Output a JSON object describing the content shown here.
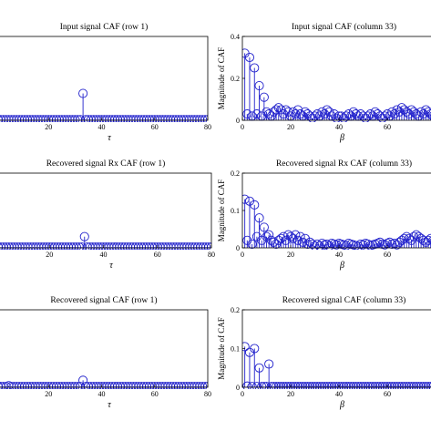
{
  "chart_data": [
    {
      "type": "stem",
      "title": "Input signal CAF (row 1)",
      "xlabel": "τ",
      "ylabel": "",
      "xlim": [
        0,
        80
      ],
      "ylim": [
        0,
        0.4
      ],
      "xticks": [
        20,
        40,
        60,
        80
      ],
      "xticklabels": [
        "20",
        "40",
        "60",
        "80"
      ],
      "yticks": [],
      "yticklabels": [],
      "x_start": 1,
      "x_end": 80,
      "baseline": 0.003,
      "peaks": [
        {
          "x": 33,
          "y": 0.128
        }
      ],
      "grid": false
    },
    {
      "type": "stem",
      "title": "Input signal CAF (column 33)",
      "xlabel": "β",
      "ylabel": "Magnitude of CAF",
      "xlim": [
        0,
        80
      ],
      "ylim": [
        0,
        0.4
      ],
      "xticks": [
        0,
        20,
        40,
        60
      ],
      "xticklabels": [
        "0",
        "20",
        "40",
        "60"
      ],
      "yticks": [
        0,
        0.2,
        0.4
      ],
      "yticklabels": [
        "0",
        "0.2",
        "0.4"
      ],
      "x": [
        1,
        2,
        3,
        4,
        5,
        6,
        7,
        8,
        9,
        10,
        11,
        12,
        13,
        14,
        15,
        16,
        17,
        18,
        19,
        20,
        21,
        22,
        23,
        24,
        25,
        26,
        27,
        28,
        29,
        30,
        31,
        32,
        33,
        34,
        35,
        36,
        37,
        38,
        39,
        40,
        41,
        42,
        43,
        44,
        45,
        46,
        47,
        48,
        49,
        50,
        51,
        52,
        53,
        54,
        55,
        56,
        57,
        58,
        59,
        60,
        61,
        62,
        63,
        64,
        65,
        66,
        67,
        68,
        69,
        70,
        71,
        72,
        73,
        74,
        75,
        76,
        77,
        78,
        79,
        80
      ],
      "y": [
        0.32,
        0.03,
        0.3,
        0.02,
        0.25,
        0.03,
        0.165,
        0.02,
        0.11,
        0.04,
        0.03,
        0.02,
        0.04,
        0.05,
        0.06,
        0.05,
        0.03,
        0.05,
        0.04,
        0.02,
        0.04,
        0.03,
        0.05,
        0.03,
        0.02,
        0.04,
        0.03,
        0.02,
        0.01,
        0.02,
        0.03,
        0.02,
        0.04,
        0.03,
        0.05,
        0.04,
        0.02,
        0.03,
        0.01,
        0.02,
        0.02,
        0.01,
        0.02,
        0.03,
        0.02,
        0.04,
        0.03,
        0.02,
        0.03,
        0.02,
        0.01,
        0.02,
        0.03,
        0.02,
        0.04,
        0.03,
        0.02,
        0.01,
        0.02,
        0.03,
        0.02,
        0.04,
        0.03,
        0.05,
        0.04,
        0.06,
        0.05,
        0.04,
        0.03,
        0.05,
        0.04,
        0.03,
        0.02,
        0.04,
        0.03,
        0.05,
        0.04,
        0.03,
        0.02,
        0.04
      ],
      "grid": false
    },
    {
      "type": "stem",
      "title": "Recovered signal Rx CAF (row 1)",
      "xlabel": "τ",
      "ylabel": "",
      "xlim": [
        0,
        80
      ],
      "ylim": [
        0,
        0.2
      ],
      "xticks": [
        20,
        40,
        60,
        80
      ],
      "xticklabels": [
        "20",
        "40",
        "60",
        "80"
      ],
      "yticks": [],
      "yticklabels": [],
      "x_start": 1,
      "x_end": 80,
      "baseline": 0.002,
      "peaks": [
        {
          "x": 33,
          "y": 0.03
        }
      ],
      "grid": false
    },
    {
      "type": "stem",
      "title": "Recovered signal Rx CAF (column 33)",
      "xlabel": "β",
      "ylabel": "Magnitude of CAF",
      "xlim": [
        0,
        80
      ],
      "ylim": [
        0,
        0.2
      ],
      "xticks": [
        0,
        20,
        40,
        60
      ],
      "xticklabels": [
        "0",
        "20",
        "40",
        "60"
      ],
      "yticks": [
        0,
        0.1,
        0.2
      ],
      "yticklabels": [
        "0",
        "0.1",
        "0.2"
      ],
      "x": [
        1,
        2,
        3,
        4,
        5,
        6,
        7,
        8,
        9,
        10,
        11,
        12,
        13,
        14,
        15,
        16,
        17,
        18,
        19,
        20,
        21,
        22,
        23,
        24,
        25,
        26,
        27,
        28,
        29,
        30,
        31,
        32,
        33,
        34,
        35,
        36,
        37,
        38,
        39,
        40,
        41,
        42,
        43,
        44,
        45,
        46,
        47,
        48,
        49,
        50,
        51,
        52,
        53,
        54,
        55,
        56,
        57,
        58,
        59,
        60,
        61,
        62,
        63,
        64,
        65,
        66,
        67,
        68,
        69,
        70,
        71,
        72,
        73,
        74,
        75,
        76,
        77,
        78,
        79,
        80
      ],
      "y": [
        0.13,
        0.02,
        0.125,
        0.01,
        0.115,
        0.03,
        0.08,
        0.02,
        0.055,
        0.03,
        0.035,
        0.02,
        0.015,
        0.01,
        0.02,
        0.025,
        0.03,
        0.02,
        0.035,
        0.03,
        0.025,
        0.035,
        0.02,
        0.03,
        0.015,
        0.025,
        0.01,
        0.015,
        0.01,
        0.005,
        0.01,
        0.005,
        0.012,
        0.008,
        0.01,
        0.005,
        0.012,
        0.01,
        0.008,
        0.012,
        0.01,
        0.008,
        0.006,
        0.012,
        0.01,
        0.008,
        0.006,
        0.004,
        0.01,
        0.008,
        0.012,
        0.01,
        0.006,
        0.008,
        0.01,
        0.012,
        0.015,
        0.01,
        0.008,
        0.012,
        0.015,
        0.01,
        0.012,
        0.008,
        0.015,
        0.02,
        0.025,
        0.03,
        0.025,
        0.02,
        0.03,
        0.035,
        0.03,
        0.025,
        0.02,
        0.015,
        0.02,
        0.025,
        0.02,
        0.015
      ],
      "grid": false
    },
    {
      "type": "stem",
      "title": "Recovered signal CAF (row 1)",
      "xlabel": "τ",
      "ylabel": "",
      "xlim": [
        0,
        80
      ],
      "ylim": [
        0,
        0.2
      ],
      "xticks": [
        20,
        40,
        60,
        80
      ],
      "xticklabels": [
        "20",
        "40",
        "60",
        "80"
      ],
      "yticks": [],
      "yticklabels": [],
      "x_start": 1,
      "x_end": 80,
      "baseline": 0.002,
      "peaks": [
        {
          "x": 33,
          "y": 0.018
        },
        {
          "x": 5,
          "y": 0.004
        }
      ],
      "grid": false
    },
    {
      "type": "stem",
      "title": "Recovered signal CAF (column 33)",
      "xlabel": "β",
      "ylabel": "Magnitude of CAF",
      "xlim": [
        0,
        80
      ],
      "ylim": [
        0,
        0.2
      ],
      "xticks": [
        0,
        20,
        40,
        60
      ],
      "xticklabels": [
        "0",
        "20",
        "40",
        "60"
      ],
      "yticks": [
        0,
        0.1,
        0.2
      ],
      "yticklabels": [
        "0",
        "0.1",
        "0.2"
      ],
      "x": [
        1,
        2,
        3,
        4,
        5,
        6,
        7,
        8,
        9,
        10,
        11,
        12,
        13,
        14,
        15,
        16,
        17,
        18,
        19,
        20,
        21,
        22,
        23,
        24,
        25,
        26,
        27,
        28,
        29,
        30,
        31,
        32,
        33,
        34,
        35,
        36,
        37,
        38,
        39,
        40,
        41,
        42,
        43,
        44,
        45,
        46,
        47,
        48,
        49,
        50,
        51,
        52,
        53,
        54,
        55,
        56,
        57,
        58,
        59,
        60,
        61,
        62,
        63,
        64,
        65,
        66,
        67,
        68,
        69,
        70,
        71,
        72,
        73,
        74,
        75,
        76,
        77,
        78,
        79,
        80
      ],
      "y": [
        0.105,
        0.003,
        0.09,
        0.002,
        0.1,
        0.002,
        0.05,
        0.002,
        0.002,
        0.002,
        0.06,
        0.002,
        0.002,
        0.002,
        0.002,
        0.002,
        0.002,
        0.002,
        0.002,
        0.002,
        0.002,
        0.002,
        0.002,
        0.002,
        0.002,
        0.002,
        0.002,
        0.002,
        0.002,
        0.002,
        0.002,
        0.002,
        0.002,
        0.002,
        0.002,
        0.002,
        0.002,
        0.002,
        0.002,
        0.002,
        0.002,
        0.002,
        0.002,
        0.002,
        0.002,
        0.002,
        0.002,
        0.002,
        0.002,
        0.002,
        0.002,
        0.002,
        0.002,
        0.002,
        0.002,
        0.002,
        0.002,
        0.002,
        0.002,
        0.002,
        0.002,
        0.002,
        0.002,
        0.002,
        0.002,
        0.002,
        0.002,
        0.002,
        0.002,
        0.002,
        0.002,
        0.002,
        0.002,
        0.002,
        0.002,
        0.002,
        0.002,
        0.002,
        0.002,
        0.002
      ],
      "grid": false
    }
  ]
}
